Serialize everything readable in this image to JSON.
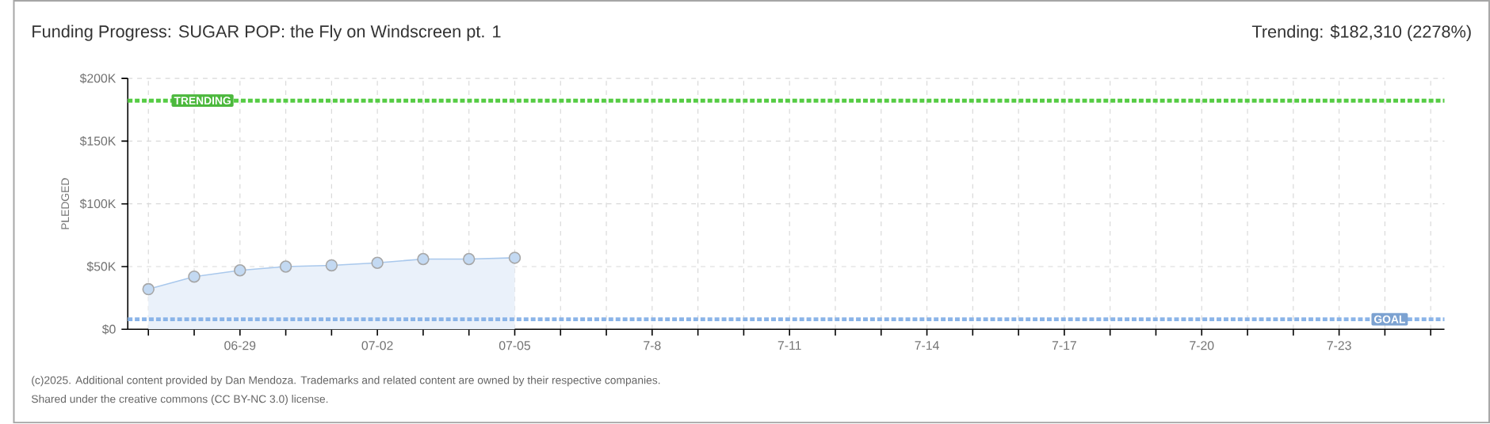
{
  "chart_data": {
    "type": "area",
    "title": "Funding Progress: SUGAR POP: the Fly on Windscreen pt. 1",
    "subtitle": "Trending: $182,310 (2278%)",
    "ylabel": "PLEDGED",
    "categories": [
      null,
      null,
      "06-29",
      null,
      null,
      "07-02",
      null,
      null,
      "07-05",
      null,
      null,
      "7-8",
      null,
      null,
      "7-11",
      null,
      null,
      "7-14",
      null,
      null,
      "7-17",
      null,
      null,
      "7-20",
      null,
      null,
      "7-23",
      null,
      null
    ],
    "series": [
      {
        "color": "#a9c8ec",
        "values": [
          32000,
          42000,
          47000,
          50000,
          51000,
          53000,
          56000,
          56000,
          57000,
          null,
          null,
          null,
          null,
          null,
          null,
          null,
          null,
          null,
          null,
          null,
          null,
          null,
          null,
          null,
          null,
          null,
          null,
          null,
          null
        ]
      }
    ],
    "ylim": [
      0,
      200000
    ],
    "yticks": [
      {
        "value": 0,
        "label": "$0"
      },
      {
        "value": 50000,
        "label": "$50K"
      },
      {
        "value": 100000,
        "label": "$100K"
      },
      {
        "value": 150000,
        "label": "$150K"
      },
      {
        "value": 200000,
        "label": "$200K"
      }
    ],
    "grid": true,
    "marker": "circle",
    "ref_lines": [
      {
        "axis": "y",
        "value": 182310,
        "label": "TRENDING",
        "color": "#55cc44",
        "line_style": "dotted"
      },
      {
        "axis": "y",
        "value": 8000,
        "label": "GOAL",
        "color": "#8ab4e8",
        "line_style": "dotted"
      }
    ],
    "annotations": [
      "(c)2025. Additional content provided by Dan Mendoza. Trademarks and related content are owned by their respective companies.",
      "Shared under the creative commons (CC BY-NC 3.0) license."
    ]
  }
}
